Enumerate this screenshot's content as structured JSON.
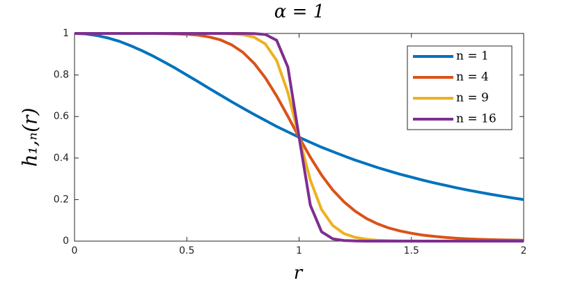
{
  "chart_data": {
    "type": "line",
    "title": "α = 1",
    "xlabel": "r",
    "ylabel": "h₁,ₙ(r)",
    "x": [
      0,
      0.05,
      0.1,
      0.15,
      0.2,
      0.25,
      0.3,
      0.35,
      0.4,
      0.45,
      0.5,
      0.55,
      0.6,
      0.65,
      0.7,
      0.75,
      0.8,
      0.85,
      0.9,
      0.95,
      1,
      1.05,
      1.1,
      1.15,
      1.2,
      1.25,
      1.3,
      1.35,
      1.4,
      1.45,
      1.5,
      1.55,
      1.6,
      1.65,
      1.7,
      1.75,
      1.8,
      1.85,
      1.9,
      1.95,
      2
    ],
    "series": [
      {
        "name": "n = 1",
        "color": "#0072bd",
        "values": [
          1,
          0.998,
          0.99,
          0.978,
          0.962,
          0.941,
          0.917,
          0.891,
          0.862,
          0.832,
          0.8,
          0.768,
          0.735,
          0.703,
          0.671,
          0.64,
          0.61,
          0.581,
          0.552,
          0.526,
          0.5,
          0.476,
          0.452,
          0.431,
          0.41,
          0.39,
          0.372,
          0.354,
          0.338,
          0.322,
          0.308,
          0.294,
          0.281,
          0.269,
          0.257,
          0.246,
          0.236,
          0.226,
          0.217,
          0.208,
          0.2
        ]
      },
      {
        "name": "n = 4",
        "color": "#d95319",
        "values": [
          1,
          1,
          1,
          1,
          1,
          1,
          1,
          1,
          0.999,
          0.998,
          0.996,
          0.992,
          0.983,
          0.969,
          0.945,
          0.909,
          0.856,
          0.786,
          0.699,
          0.601,
          0.5,
          0.404,
          0.318,
          0.246,
          0.189,
          0.144,
          0.109,
          0.083,
          0.063,
          0.049,
          0.038,
          0.029,
          0.023,
          0.018,
          0.014,
          0.011,
          0.009,
          0.007,
          0.006,
          0.005,
          0.004
        ]
      },
      {
        "name": "n = 9",
        "color": "#edb120",
        "values": [
          1,
          1,
          1,
          1,
          1,
          1,
          1,
          1,
          1,
          1,
          1,
          1,
          1,
          1,
          0.998,
          0.994,
          0.982,
          0.949,
          0.87,
          0.716,
          0.5,
          0.294,
          0.152,
          0.075,
          0.036,
          0.018,
          0.009,
          0.004,
          0.002,
          0.001,
          0.001,
          0,
          0,
          0,
          0,
          0,
          0,
          0,
          0,
          0,
          0
        ]
      },
      {
        "name": "n = 16",
        "color": "#7e2f8e",
        "values": [
          1,
          1,
          1,
          1,
          1,
          1,
          1,
          1,
          1,
          1,
          1,
          1,
          1,
          1,
          1,
          1,
          0.999,
          0.995,
          0.967,
          0.838,
          0.5,
          0.173,
          0.045,
          0.011,
          0.003,
          0.001,
          0,
          0,
          0,
          0,
          0,
          0,
          0,
          0,
          0,
          0,
          0,
          0,
          0,
          0,
          0
        ]
      }
    ],
    "xlim": [
      0,
      2
    ],
    "xticks": [
      0,
      0.5,
      1,
      1.5,
      2
    ],
    "ylim": [
      0,
      1
    ],
    "yticks": [
      0,
      0.2,
      0.4,
      0.6,
      0.8,
      1
    ],
    "grid": false,
    "legend": "upper right"
  }
}
